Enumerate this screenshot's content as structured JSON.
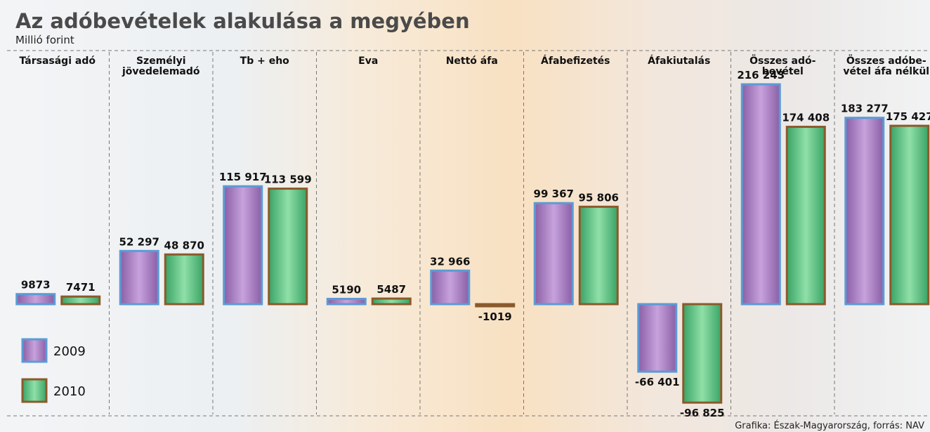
{
  "chart_data": {
    "type": "bar",
    "title": "Az adóbevételek alakulása a megyében",
    "subtitle": "Millió forint",
    "source": "Grafika: Észak-Magyarország, forrás: NAV",
    "categories": [
      "Társasági adó",
      "Személyi\njövedelemadó",
      "Tb + eho",
      "Eva",
      "Nettó áfa",
      "Áfabefizetés",
      "Áfakiutalás",
      "Összes adó-\nbevétel",
      "Összes adóbe-\nvétel áfa nélkül"
    ],
    "series": [
      {
        "name": "2009",
        "color": "#8a5fa6",
        "border": "#5b9bd5",
        "values": [
          9873,
          52297,
          115917,
          5190,
          32966,
          99367,
          -66401,
          216243,
          183277
        ],
        "value_labels": [
          "9873",
          "52 297",
          "115 917",
          "5190",
          "32 966",
          "99 367",
          "-66 401",
          "216 243",
          "183 277"
        ]
      },
      {
        "name": "2010",
        "color": "#3aa366",
        "border": "#8b5a2b",
        "values": [
          7471,
          48870,
          113599,
          5487,
          -1019,
          95806,
          -96825,
          174408,
          175427
        ],
        "value_labels": [
          "7471",
          "48 870",
          "113 599",
          "5487",
          "-1019",
          "95 806",
          "-96 825",
          "174 408",
          "175 427"
        ]
      }
    ]
  }
}
